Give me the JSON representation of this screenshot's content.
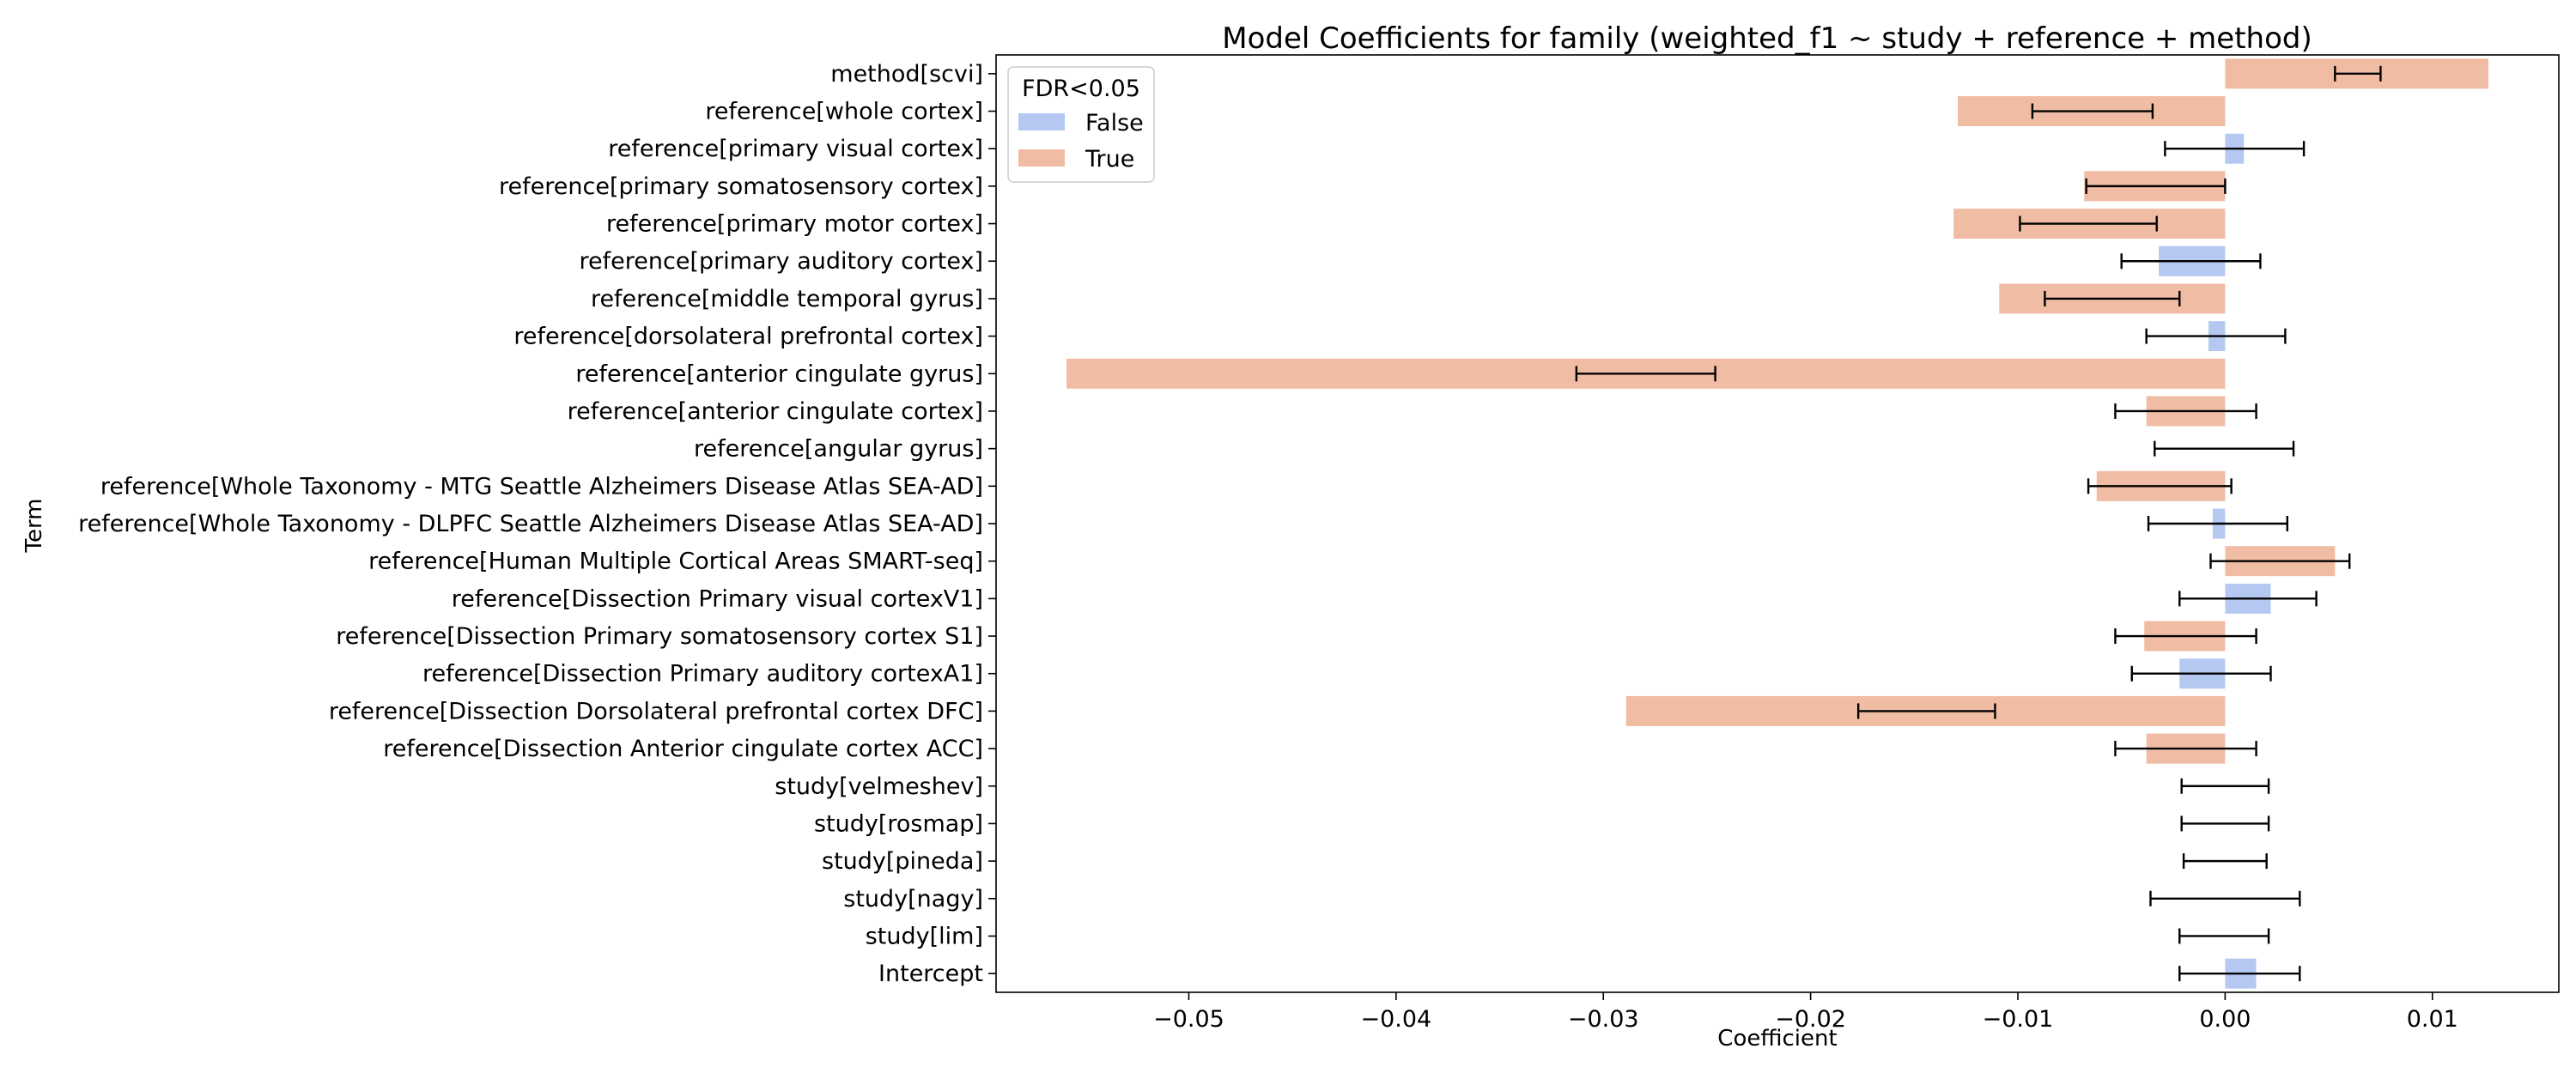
{
  "chart_data": {
    "type": "bar",
    "orientation": "horizontal",
    "title": "Model Coefficients for family (weighted_f1 ~ study + reference + method)",
    "xlabel": "Coefficient",
    "ylabel": "Term",
    "xlim": [
      -0.0593,
      0.0161
    ],
    "xticks": [
      -0.05,
      -0.04,
      -0.03,
      -0.02,
      -0.01,
      0.0,
      0.01
    ],
    "xtick_labels": [
      "−0.05",
      "−0.04",
      "−0.03",
      "−0.02",
      "−0.01",
      "0.00",
      "0.01"
    ],
    "grid": false,
    "colors": {
      "False": "#b4c8f2",
      "True": "#f0bca3",
      "errorbar": "#000000"
    },
    "legend": {
      "title": "FDR<0.05",
      "placement": "upper-left",
      "entries": [
        {
          "label": "False",
          "key": "False"
        },
        {
          "label": "True",
          "key": "True"
        }
      ]
    },
    "categories": [
      "method[scvi]",
      "reference[whole cortex]",
      "reference[primary visual cortex]",
      "reference[primary somatosensory cortex]",
      "reference[primary motor cortex]",
      "reference[primary auditory cortex]",
      "reference[middle temporal gyrus]",
      "reference[dorsolateral prefrontal cortex]",
      "reference[anterior cingulate gyrus]",
      "reference[anterior cingulate cortex]",
      "reference[angular gyrus]",
      "reference[Whole Taxonomy - MTG Seattle Alzheimers Disease Atlas SEA-AD]",
      "reference[Whole Taxonomy - DLPFC Seattle Alzheimers Disease Atlas SEA-AD]",
      "reference[Human Multiple Cortical Areas SMART-seq]",
      "reference[Dissection Primary visual cortexV1]",
      "reference[Dissection Primary somatosensory cortex S1]",
      "reference[Dissection Primary auditory cortexA1]",
      "reference[Dissection Dorsolateral prefrontal cortex DFC]",
      "reference[Dissection Anterior cingulate cortex ACC]",
      "study[velmeshev]",
      "study[rosmap]",
      "study[pineda]",
      "study[nagy]",
      "study[lim]",
      "Intercept"
    ],
    "values": [
      0.0127,
      -0.0129,
      0.0009,
      -0.0068,
      -0.0131,
      -0.0032,
      -0.0109,
      -0.0008,
      -0.0559,
      -0.0038,
      0.0,
      -0.0062,
      -0.0006,
      0.0053,
      0.0022,
      -0.0039,
      -0.0022,
      -0.0289,
      -0.0038,
      0.0,
      0.0,
      0.0,
      0.0,
      0.0,
      0.0015
    ],
    "err_low": [
      0.0053,
      -0.0093,
      -0.0029,
      -0.0067,
      -0.0099,
      -0.005,
      -0.0087,
      -0.0038,
      -0.0313,
      -0.0053,
      -0.0034,
      -0.0066,
      -0.0037,
      -0.0007,
      -0.0022,
      -0.0053,
      -0.0045,
      -0.0177,
      -0.0053,
      -0.0021,
      -0.0021,
      -0.002,
      -0.0036,
      -0.0022,
      -0.0022
    ],
    "err_high": [
      0.0075,
      -0.0035,
      0.0038,
      0.0,
      -0.0033,
      0.0017,
      -0.0022,
      0.0029,
      -0.0246,
      0.0015,
      0.0033,
      0.0003,
      0.003,
      0.006,
      0.0044,
      0.0015,
      0.0022,
      -0.0111,
      0.0015,
      0.0021,
      0.0021,
      0.002,
      0.0036,
      0.0021,
      0.0036
    ],
    "significant": [
      true,
      true,
      false,
      true,
      true,
      false,
      true,
      false,
      true,
      true,
      false,
      true,
      false,
      true,
      false,
      true,
      false,
      true,
      true,
      false,
      false,
      false,
      false,
      false,
      false
    ]
  }
}
